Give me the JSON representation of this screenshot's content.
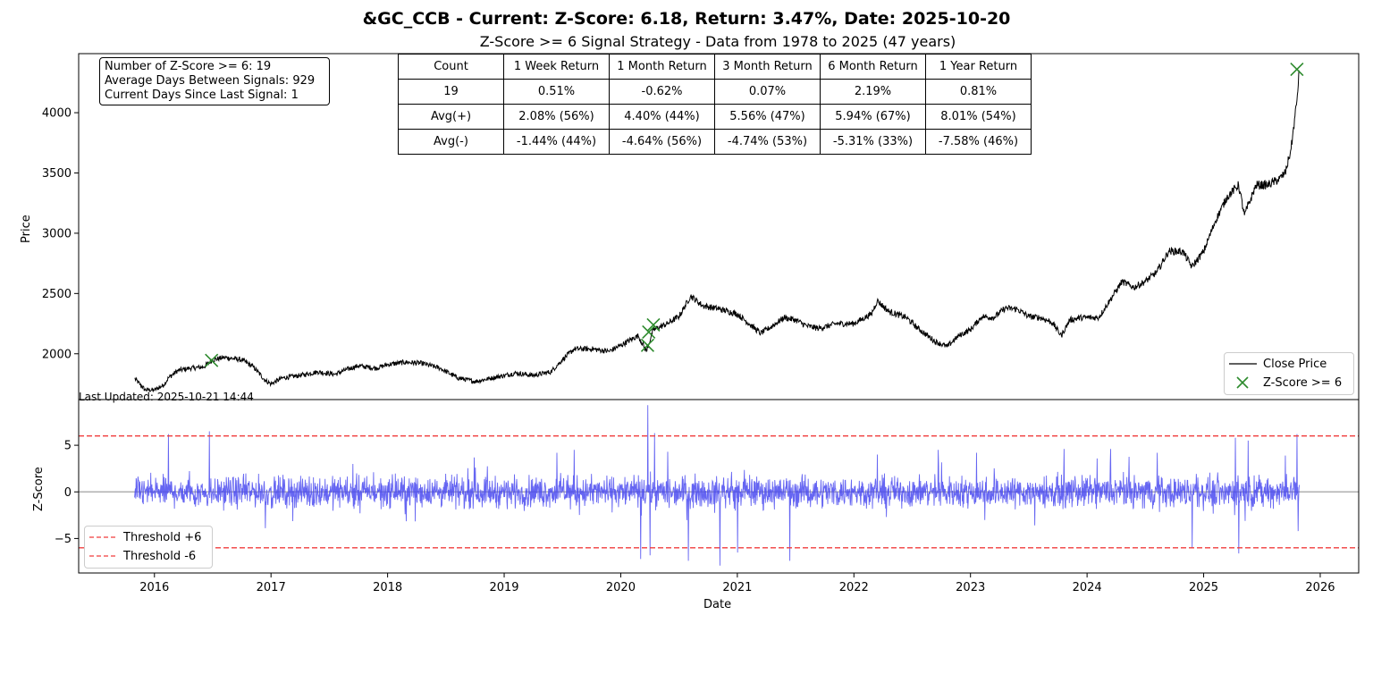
{
  "title": "&GC_CCB - Current: Z-Score: 6.18, Return: 3.47%, Date: 2025-10-20",
  "subtitle": "Z-Score >= 6 Signal Strategy - Data from 1978 to 2025 (47 years)",
  "stats_box": {
    "line1": "Number of Z-Score >= 6: 19",
    "line2": "Average Days Between Signals: 929",
    "line3": "Current Days Since Last Signal: 1"
  },
  "returns_table": {
    "headers": [
      "Count",
      "1 Week Return",
      "1 Month Return",
      "3 Month Return",
      "6 Month Return",
      "1 Year Return"
    ],
    "rows": [
      [
        "19",
        "0.51%",
        "-0.62%",
        "0.07%",
        "2.19%",
        "0.81%"
      ],
      [
        "Avg(+)",
        "2.08% (56%)",
        "4.40% (44%)",
        "5.56% (47%)",
        "5.94% (67%)",
        "8.01% (54%)"
      ],
      [
        "Avg(-)",
        "-1.44% (44%)",
        "-4.64% (56%)",
        "-4.74% (53%)",
        "-5.31% (33%)",
        "-7.58% (46%)"
      ]
    ]
  },
  "last_updated": "Last Updated: 2025-10-21 14:44",
  "colors": {
    "price_line": "#000000",
    "signal_marker": "#2e8b2e",
    "zscore_line": "#4a4af0",
    "threshold_line": "#f03c3c",
    "zero_line": "#b0b0b0"
  },
  "chart_data": [
    {
      "type": "line",
      "ylabel": "Price",
      "xlim": [
        2015.35,
        2026.33
      ],
      "ylim": [
        1620,
        4490
      ],
      "yticks": [
        2000,
        2500,
        3000,
        3500,
        4000
      ],
      "legend_position": "lower-right",
      "series": [
        {
          "name": "Close Price",
          "points": [
            [
              2015.83,
              1795
            ],
            [
              2015.92,
              1700
            ],
            [
              2016.0,
              1700
            ],
            [
              2016.08,
              1740
            ],
            [
              2016.12,
              1800
            ],
            [
              2016.2,
              1860
            ],
            [
              2016.3,
              1880
            ],
            [
              2016.42,
              1890
            ],
            [
              2016.5,
              1950
            ],
            [
              2016.6,
              1970
            ],
            [
              2016.75,
              1950
            ],
            [
              2016.85,
              1890
            ],
            [
              2016.95,
              1780
            ],
            [
              2017.0,
              1750
            ],
            [
              2017.1,
              1800
            ],
            [
              2017.25,
              1820
            ],
            [
              2017.4,
              1850
            ],
            [
              2017.55,
              1830
            ],
            [
              2017.65,
              1870
            ],
            [
              2017.75,
              1900
            ],
            [
              2017.9,
              1880
            ],
            [
              2018.0,
              1910
            ],
            [
              2018.15,
              1930
            ],
            [
              2018.3,
              1920
            ],
            [
              2018.45,
              1880
            ],
            [
              2018.6,
              1800
            ],
            [
              2018.75,
              1770
            ],
            [
              2018.9,
              1800
            ],
            [
              2019.0,
              1820
            ],
            [
              2019.1,
              1840
            ],
            [
              2019.25,
              1820
            ],
            [
              2019.4,
              1850
            ],
            [
              2019.5,
              1950
            ],
            [
              2019.6,
              2040
            ],
            [
              2019.75,
              2040
            ],
            [
              2019.9,
              2020
            ],
            [
              2020.0,
              2070
            ],
            [
              2020.15,
              2150
            ],
            [
              2020.22,
              2020
            ],
            [
              2020.28,
              2200
            ],
            [
              2020.4,
              2250
            ],
            [
              2020.5,
              2310
            ],
            [
              2020.6,
              2480
            ],
            [
              2020.7,
              2400
            ],
            [
              2020.85,
              2370
            ],
            [
              2021.0,
              2330
            ],
            [
              2021.1,
              2250
            ],
            [
              2021.2,
              2170
            ],
            [
              2021.3,
              2230
            ],
            [
              2021.4,
              2300
            ],
            [
              2021.5,
              2280
            ],
            [
              2021.6,
              2230
            ],
            [
              2021.7,
              2210
            ],
            [
              2021.85,
              2250
            ],
            [
              2022.0,
              2250
            ],
            [
              2022.15,
              2330
            ],
            [
              2022.2,
              2440
            ],
            [
              2022.3,
              2350
            ],
            [
              2022.45,
              2300
            ],
            [
              2022.55,
              2210
            ],
            [
              2022.7,
              2100
            ],
            [
              2022.8,
              2060
            ],
            [
              2022.9,
              2150
            ],
            [
              2023.0,
              2200
            ],
            [
              2023.1,
              2310
            ],
            [
              2023.2,
              2300
            ],
            [
              2023.3,
              2380
            ],
            [
              2023.4,
              2370
            ],
            [
              2023.5,
              2310
            ],
            [
              2023.6,
              2300
            ],
            [
              2023.7,
              2260
            ],
            [
              2023.78,
              2150
            ],
            [
              2023.85,
              2280
            ],
            [
              2023.95,
              2300
            ],
            [
              2024.1,
              2300
            ],
            [
              2024.2,
              2450
            ],
            [
              2024.3,
              2600
            ],
            [
              2024.4,
              2550
            ],
            [
              2024.5,
              2600
            ],
            [
              2024.6,
              2680
            ],
            [
              2024.7,
              2850
            ],
            [
              2024.82,
              2850
            ],
            [
              2024.9,
              2720
            ],
            [
              2025.0,
              2850
            ],
            [
              2025.1,
              3100
            ],
            [
              2025.2,
              3300
            ],
            [
              2025.3,
              3400
            ],
            [
              2025.35,
              3150
            ],
            [
              2025.45,
              3400
            ],
            [
              2025.55,
              3400
            ],
            [
              2025.65,
              3450
            ],
            [
              2025.7,
              3500
            ],
            [
              2025.75,
              3700
            ],
            [
              2025.8,
              4100
            ],
            [
              2025.82,
              4350
            ]
          ]
        },
        {
          "name": "Z-Score >= 6",
          "points": [
            [
              2016.49,
              1945
            ],
            [
              2020.23,
              2070
            ],
            [
              2020.24,
              2180
            ],
            [
              2020.28,
              2240
            ],
            [
              2025.8,
              4360
            ]
          ]
        }
      ]
    },
    {
      "type": "line",
      "xlabel": "Date",
      "ylabel": "Z-Score",
      "xlim": [
        2015.35,
        2026.33
      ],
      "ylim": [
        -8.7,
        9.9
      ],
      "yticks": [
        -5,
        0,
        5
      ],
      "xticks": [
        2016,
        2017,
        2018,
        2019,
        2020,
        2021,
        2022,
        2023,
        2024,
        2025,
        2026
      ],
      "legend_position": "lower-left",
      "thresholds": [
        6,
        -6
      ],
      "series": [
        {
          "name": "Z-Score",
          "spikes": [
            [
              2016.12,
              6.2
            ],
            [
              2016.47,
              6.5
            ],
            [
              2016.95,
              -3.9
            ],
            [
              2017.7,
              3.0
            ],
            [
              2018.15,
              -2.4
            ],
            [
              2018.75,
              2.6
            ],
            [
              2019.45,
              4.2
            ],
            [
              2019.6,
              4.5
            ],
            [
              2020.17,
              -7.2
            ],
            [
              2020.23,
              9.3
            ],
            [
              2020.25,
              -6.8
            ],
            [
              2020.29,
              6.3
            ],
            [
              2020.4,
              4.3
            ],
            [
              2020.58,
              -7.4
            ],
            [
              2020.85,
              -7.9
            ],
            [
              2021.0,
              -6.5
            ],
            [
              2021.45,
              -7.4
            ],
            [
              2022.2,
              4.0
            ],
            [
              2022.72,
              4.5
            ],
            [
              2023.05,
              4.2
            ],
            [
              2023.55,
              -3.6
            ],
            [
              2023.8,
              4.6
            ],
            [
              2024.2,
              4.6
            ],
            [
              2024.6,
              4.2
            ],
            [
              2024.9,
              -6.0
            ],
            [
              2025.27,
              5.8
            ],
            [
              2025.3,
              -6.6
            ],
            [
              2025.38,
              5.5
            ],
            [
              2025.7,
              3.9
            ],
            [
              2025.8,
              6.2
            ],
            [
              2025.81,
              -4.2
            ]
          ]
        },
        {
          "name": "Threshold +6",
          "value": 6
        },
        {
          "name": "Threshold -6",
          "value": -6
        }
      ]
    }
  ]
}
